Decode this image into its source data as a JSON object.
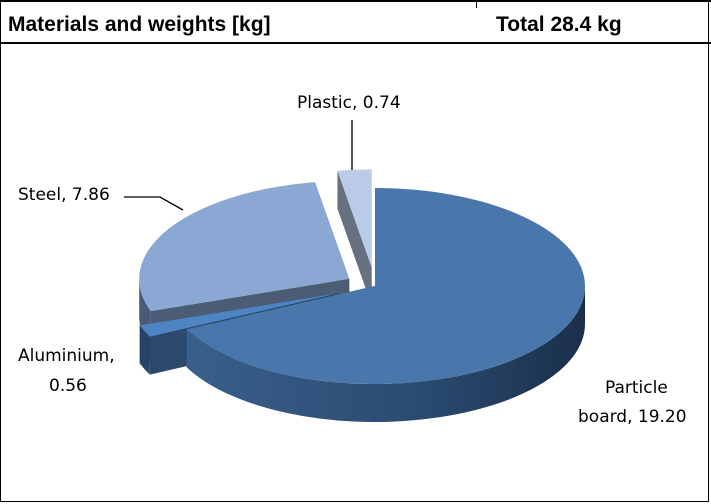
{
  "header": {
    "title": "Materials and weights [kg]",
    "total": "Total 28.4 kg"
  },
  "chart_data": {
    "type": "pie",
    "three_d": true,
    "exploded": true,
    "title": "Materials and weights [kg]",
    "total_label": "Total 28.4 kg",
    "slices": [
      {
        "name": "Particle board",
        "value": 19.2,
        "label": "Particle board, 19.20",
        "color": "#4a77ab"
      },
      {
        "name": "Aluminium",
        "value": 0.56,
        "label": "Aluminium, 0.56",
        "color": "#4f84c2"
      },
      {
        "name": "Steel",
        "value": 7.86,
        "label": "Steel, 7.86",
        "color": "#8aa8d3"
      },
      {
        "name": "Plastic",
        "value": 0.74,
        "label": "Plastic, 0.74",
        "color": "#b9cbe6"
      }
    ],
    "label_lines": {
      "particle": [
        "Particle",
        "board, 19.20"
      ],
      "aluminium": [
        "Aluminium,",
        "0.56"
      ],
      "steel": "Steel, 7.86",
      "plastic": "Plastic, 0.74"
    }
  }
}
